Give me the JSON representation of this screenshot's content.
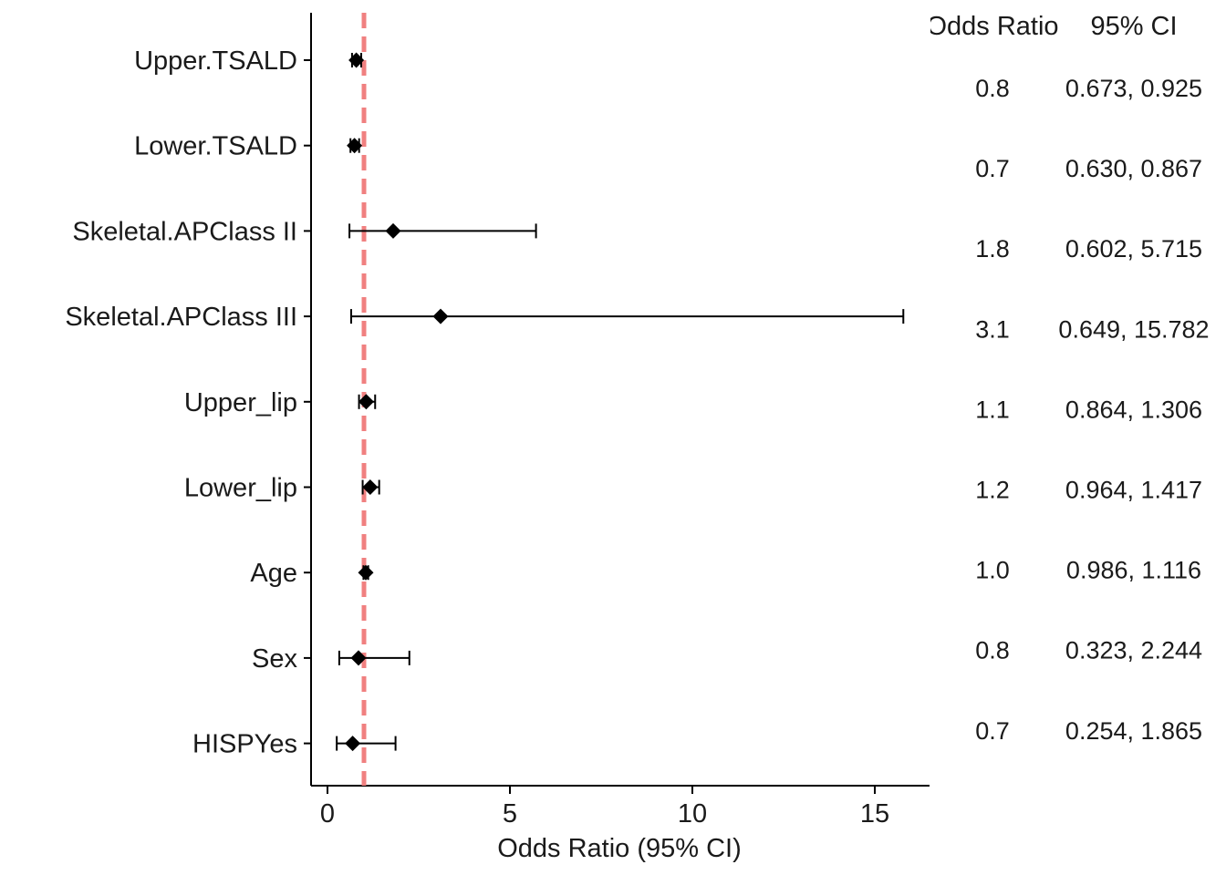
{
  "chart_data": {
    "type": "forest",
    "title": "",
    "xlabel": "Odds Ratio (95% CI)",
    "ylabel": "",
    "xlim": [
      -0.45,
      16.5
    ],
    "xticks": [
      0,
      5,
      10,
      15
    ],
    "reference_line": {
      "x": 1,
      "style": "dashed",
      "color": "#f08080"
    },
    "grid": false,
    "marker": "diamond",
    "table_headers": {
      "odds_ratio": "Odds Ratio",
      "ci": "95% CI"
    },
    "rows": [
      {
        "label": "Upper.TSALD",
        "or": 0.79,
        "lower": 0.673,
        "upper": 0.925,
        "or_text": "0.8",
        "ci_text": "0.673, 0.925"
      },
      {
        "label": "Lower.TSALD",
        "or": 0.74,
        "lower": 0.63,
        "upper": 0.867,
        "or_text": "0.7",
        "ci_text": "0.630, 0.867"
      },
      {
        "label": "Skeletal.APClass II",
        "or": 1.8,
        "lower": 0.602,
        "upper": 5.715,
        "or_text": "1.8",
        "ci_text": "0.602, 5.715"
      },
      {
        "label": "Skeletal.APClass III",
        "or": 3.1,
        "lower": 0.649,
        "upper": 15.782,
        "or_text": "3.1",
        "ci_text": "0.649, 15.782"
      },
      {
        "label": "Upper_lip",
        "or": 1.06,
        "lower": 0.864,
        "upper": 1.306,
        "or_text": "1.1",
        "ci_text": "0.864, 1.306"
      },
      {
        "label": "Lower_lip",
        "or": 1.17,
        "lower": 0.964,
        "upper": 1.417,
        "or_text": "1.2",
        "ci_text": "0.964, 1.417"
      },
      {
        "label": "Age",
        "or": 1.05,
        "lower": 0.986,
        "upper": 1.116,
        "or_text": "1.0",
        "ci_text": "0.986, 1.116"
      },
      {
        "label": "Sex",
        "or": 0.85,
        "lower": 0.323,
        "upper": 2.244,
        "or_text": "0.8",
        "ci_text": "0.323, 2.244"
      },
      {
        "label": "HISPYes",
        "or": 0.69,
        "lower": 0.254,
        "upper": 1.865,
        "or_text": "0.7",
        "ci_text": "0.254, 1.865"
      }
    ]
  }
}
